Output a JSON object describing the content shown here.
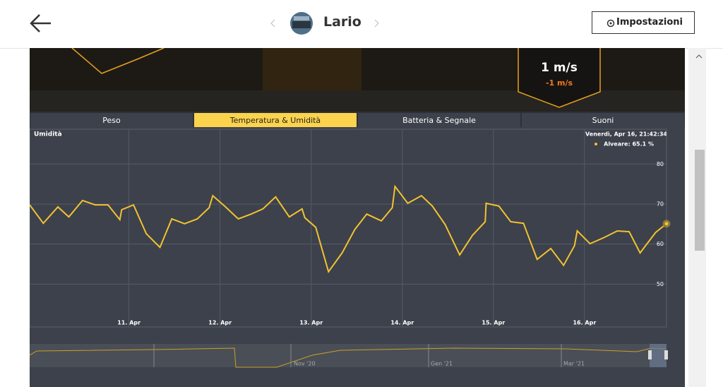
{
  "header": {
    "title": "Lario",
    "button": "Impostazioni"
  },
  "banner": {
    "value": "1 m/s",
    "delta": "-1 m/s"
  },
  "tabs": [
    "Peso",
    "Temperatura & Umidità",
    "Batteria & Segnale",
    "Suoni"
  ],
  "chart_data": {
    "type": "line",
    "title": "Umidità",
    "tooltip": {
      "date": "Venerdì, Apr 16, 21:42:34",
      "text": "Alveare: 65.1 %"
    },
    "x": [
      9.91,
      10.06,
      10.22,
      10.34,
      10.49,
      10.63,
      10.77,
      10.9,
      10.92,
      11.05,
      11.19,
      11.34,
      11.47,
      11.61,
      11.75,
      11.88,
      11.92,
      12.06,
      12.2,
      12.34,
      12.47,
      12.61,
      12.76,
      12.9,
      12.93,
      13.05,
      13.19,
      13.34,
      13.48,
      13.61,
      13.77,
      13.89,
      13.92,
      14.06,
      14.21,
      14.33,
      14.47,
      14.63,
      14.77,
      14.91,
      14.92,
      15.06,
      15.19,
      15.33,
      15.48,
      15.63,
      15.77,
      15.89,
      15.92,
      16.06,
      16.21,
      16.36,
      16.49,
      16.61,
      16.78,
      16.9
    ],
    "series": [
      {
        "name": "Alveare",
        "color": "#f2c230",
        "values": [
          69.8,
          65.2,
          69.3,
          66.8,
          70.9,
          69.8,
          69.8,
          66.1,
          68.6,
          69.8,
          62.6,
          59.2,
          66.3,
          65.1,
          66.3,
          69.1,
          72.1,
          69.3,
          66.3,
          67.5,
          68.8,
          71.8,
          66.8,
          68.8,
          66.6,
          64.2,
          53.1,
          57.8,
          63.7,
          67.5,
          65.8,
          69.1,
          74.4,
          70.2,
          72.1,
          69.5,
          64.9,
          57.3,
          62.2,
          65.6,
          70.2,
          69.5,
          65.6,
          65.2,
          56.2,
          58.9,
          54.7,
          59.6,
          63.3,
          60.1,
          61.6,
          63.3,
          63.1,
          57.8,
          62.9,
          65.1
        ]
      }
    ],
    "xlim": [
      9.91,
      16.9
    ],
    "xticks": [
      {
        "value": 11,
        "label": "11. Apr"
      },
      {
        "value": 12,
        "label": "12. Apr"
      },
      {
        "value": 13,
        "label": "13. Apr"
      },
      {
        "value": 14,
        "label": "14. Apr"
      },
      {
        "value": 15,
        "label": "15. Apr"
      },
      {
        "value": 16,
        "label": "16. Apr"
      }
    ],
    "ylim": [
      39.3,
      88.7
    ],
    "yticks": [
      50,
      60,
      70,
      80
    ],
    "grid": true
  },
  "navigator": {
    "labels": [
      "Nov '20",
      "Gen '21",
      "Mar '21"
    ]
  }
}
